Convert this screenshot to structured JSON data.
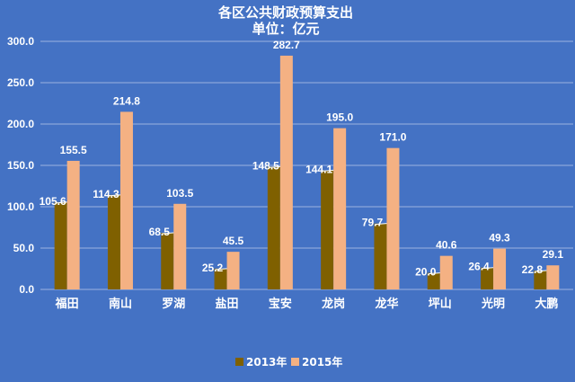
{
  "chart_data": {
    "type": "bar",
    "title": "各区公共财政预算支出",
    "subtitle": "单位：亿元",
    "categories": [
      "福田",
      "南山",
      "罗湖",
      "盐田",
      "宝安",
      "龙岗",
      "龙华",
      "坪山",
      "光明",
      "大鹏"
    ],
    "series": [
      {
        "name": "2013年",
        "values": [
          105.6,
          114.3,
          68.5,
          25.2,
          148.5,
          144.1,
          79.7,
          20.0,
          26.4,
          22.8
        ],
        "labels": [
          "105.6",
          "114.3",
          "68.5",
          "25.2",
          "148.5",
          "144.1",
          "79.7",
          "20.0",
          "26.4",
          "22.8"
        ],
        "color": "#7F6000"
      },
      {
        "name": "2015年",
        "values": [
          155.5,
          214.8,
          103.5,
          45.5,
          282.7,
          195.0,
          171.0,
          40.6,
          49.3,
          29.1
        ],
        "labels": [
          "155.5",
          "214.8",
          "103.5",
          "45.5",
          "282.7",
          "195.0",
          "171.0",
          "40.6",
          "49.3",
          "29.1"
        ],
        "color": "#F4B183"
      }
    ],
    "ylim": [
      0,
      300
    ],
    "yticks": [
      "0.0",
      "50.0",
      "100.0",
      "150.0",
      "200.0",
      "250.0",
      "300.0"
    ],
    "grid": true,
    "legend_position": "bottom",
    "background_color": "#4472C4",
    "gridline_color": "#9DB3E0"
  }
}
